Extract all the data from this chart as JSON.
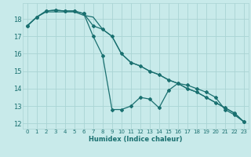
{
  "xlabel": "Humidex (Indice chaleur)",
  "bg_color": "#c8eaea",
  "grid_color": "#aad4d4",
  "line_color": "#1a7070",
  "xlim": [
    -0.5,
    23.5
  ],
  "ylim": [
    11.7,
    18.9
  ],
  "yticks": [
    12,
    13,
    14,
    15,
    16,
    17,
    18
  ],
  "xticks": [
    0,
    1,
    2,
    3,
    4,
    5,
    6,
    7,
    8,
    9,
    10,
    11,
    12,
    13,
    14,
    15,
    16,
    17,
    18,
    19,
    20,
    21,
    22,
    23
  ],
  "line1_x": [
    0,
    1,
    2,
    3,
    4,
    5,
    6,
    7,
    8,
    9,
    10,
    11,
    12,
    13,
    14,
    15,
    16,
    17,
    18,
    19,
    20,
    21,
    22,
    23
  ],
  "line1_y": [
    17.6,
    18.1,
    18.4,
    18.4,
    18.4,
    18.4,
    18.2,
    18.1,
    17.4,
    17.0,
    16.0,
    15.5,
    15.3,
    15.0,
    14.8,
    14.5,
    14.3,
    14.0,
    13.8,
    13.5,
    13.2,
    12.9,
    12.6,
    12.1
  ],
  "line2_x": [
    0,
    1,
    2,
    3,
    4,
    5,
    6,
    7,
    8,
    9,
    10,
    11,
    12,
    13,
    14,
    15,
    16,
    17,
    18,
    19,
    20,
    21,
    22,
    23
  ],
  "line2_y": [
    17.6,
    18.1,
    18.45,
    18.5,
    18.45,
    18.45,
    18.3,
    17.6,
    17.4,
    17.0,
    16.0,
    15.5,
    15.3,
    15.0,
    14.8,
    14.5,
    14.3,
    14.0,
    13.8,
    13.5,
    13.2,
    12.9,
    12.6,
    12.1
  ],
  "line3_x": [
    0,
    1,
    2,
    3,
    4,
    5,
    6,
    7,
    8,
    9,
    10,
    11,
    12,
    13,
    14,
    15,
    16,
    17,
    18,
    19,
    20,
    21,
    22,
    23
  ],
  "line3_y": [
    17.6,
    18.1,
    18.45,
    18.5,
    18.45,
    18.45,
    18.3,
    17.0,
    15.9,
    12.8,
    12.8,
    13.0,
    13.5,
    13.4,
    12.9,
    13.9,
    14.3,
    14.2,
    14.0,
    13.8,
    13.5,
    12.8,
    12.5,
    12.1
  ]
}
